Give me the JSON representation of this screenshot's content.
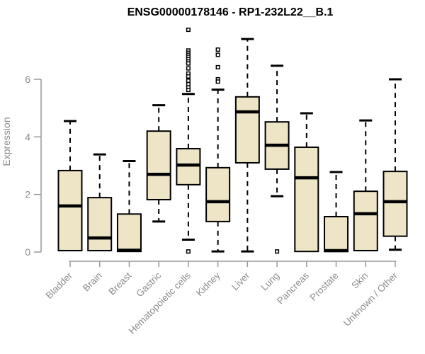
{
  "chart_data": {
    "type": "box",
    "title": "ENSG00000178146 - RP1-232L22__B.1",
    "ylabel": "Expression",
    "xlabel": "",
    "yticks": [
      0,
      2,
      4,
      6
    ],
    "ylim": [
      0,
      7.8
    ],
    "grid": false,
    "legend": false,
    "categories": [
      "Bladder",
      "Brain",
      "Breast",
      "Gastric",
      "Hematopoietic cells",
      "Kidney",
      "Liver",
      "Lung",
      "Pancreas",
      "Prostate",
      "Skin",
      "Unknown / Other"
    ],
    "series": [
      {
        "name": "Bladder",
        "low": 0.05,
        "q1": 0.05,
        "median": 1.6,
        "q3": 2.83,
        "high": 4.55,
        "outliers": []
      },
      {
        "name": "Brain",
        "low": 0.05,
        "q1": 0.05,
        "median": 0.49,
        "q3": 1.89,
        "high": 3.39,
        "outliers": []
      },
      {
        "name": "Breast",
        "low": 0.02,
        "q1": 0.02,
        "median": 0.06,
        "q3": 1.32,
        "high": 3.16,
        "outliers": []
      },
      {
        "name": "Gastric",
        "low": 1.06,
        "q1": 1.82,
        "median": 2.7,
        "q3": 4.2,
        "high": 5.1,
        "outliers": []
      },
      {
        "name": "Hematopoietic cells",
        "low": 0.43,
        "q1": 2.34,
        "median": 3.02,
        "q3": 3.59,
        "high": 5.49,
        "outliers": [
          7.72,
          7.0,
          6.92,
          6.85,
          6.78,
          6.7,
          6.62,
          6.55,
          6.38,
          6.2,
          6.1,
          5.95,
          5.83,
          5.72,
          5.63,
          0.02
        ]
      },
      {
        "name": "Kidney",
        "low": 0.02,
        "q1": 1.06,
        "median": 1.75,
        "q3": 2.93,
        "high": 5.64,
        "outliers": [
          7.03,
          6.85,
          6.42,
          6.0,
          5.92
        ]
      },
      {
        "name": "Liver",
        "low": 0.02,
        "q1": 3.1,
        "median": 4.87,
        "q3": 5.39,
        "high": 7.4,
        "outliers": []
      },
      {
        "name": "Lung",
        "low": 1.94,
        "q1": 2.88,
        "median": 3.71,
        "q3": 4.52,
        "high": 6.47,
        "outliers": [
          0.02
        ]
      },
      {
        "name": "Pancreas",
        "low": 0.02,
        "q1": 0.02,
        "median": 2.58,
        "q3": 3.64,
        "high": 4.82,
        "outliers": []
      },
      {
        "name": "Prostate",
        "low": 0.02,
        "q1": 0.02,
        "median": 0.05,
        "q3": 1.23,
        "high": 2.78,
        "outliers": []
      },
      {
        "name": "Skin",
        "low": 0.05,
        "q1": 0.05,
        "median": 1.33,
        "q3": 2.11,
        "high": 4.57,
        "outliers": []
      },
      {
        "name": "Unknown / Other",
        "low": 0.08,
        "q1": 0.55,
        "median": 1.75,
        "q3": 2.8,
        "high": 6.0,
        "outliers": []
      }
    ],
    "colors": {
      "box_fill": "#EDE5C6",
      "box_stroke": "#000000",
      "median_stroke": "#000000",
      "whisker_stroke": "#000000",
      "outlier_stroke": "#000000",
      "axis_line": "#999999",
      "axis_text": "#8c8c8c",
      "title_text": "#000000",
      "background": "#ffffff"
    }
  }
}
